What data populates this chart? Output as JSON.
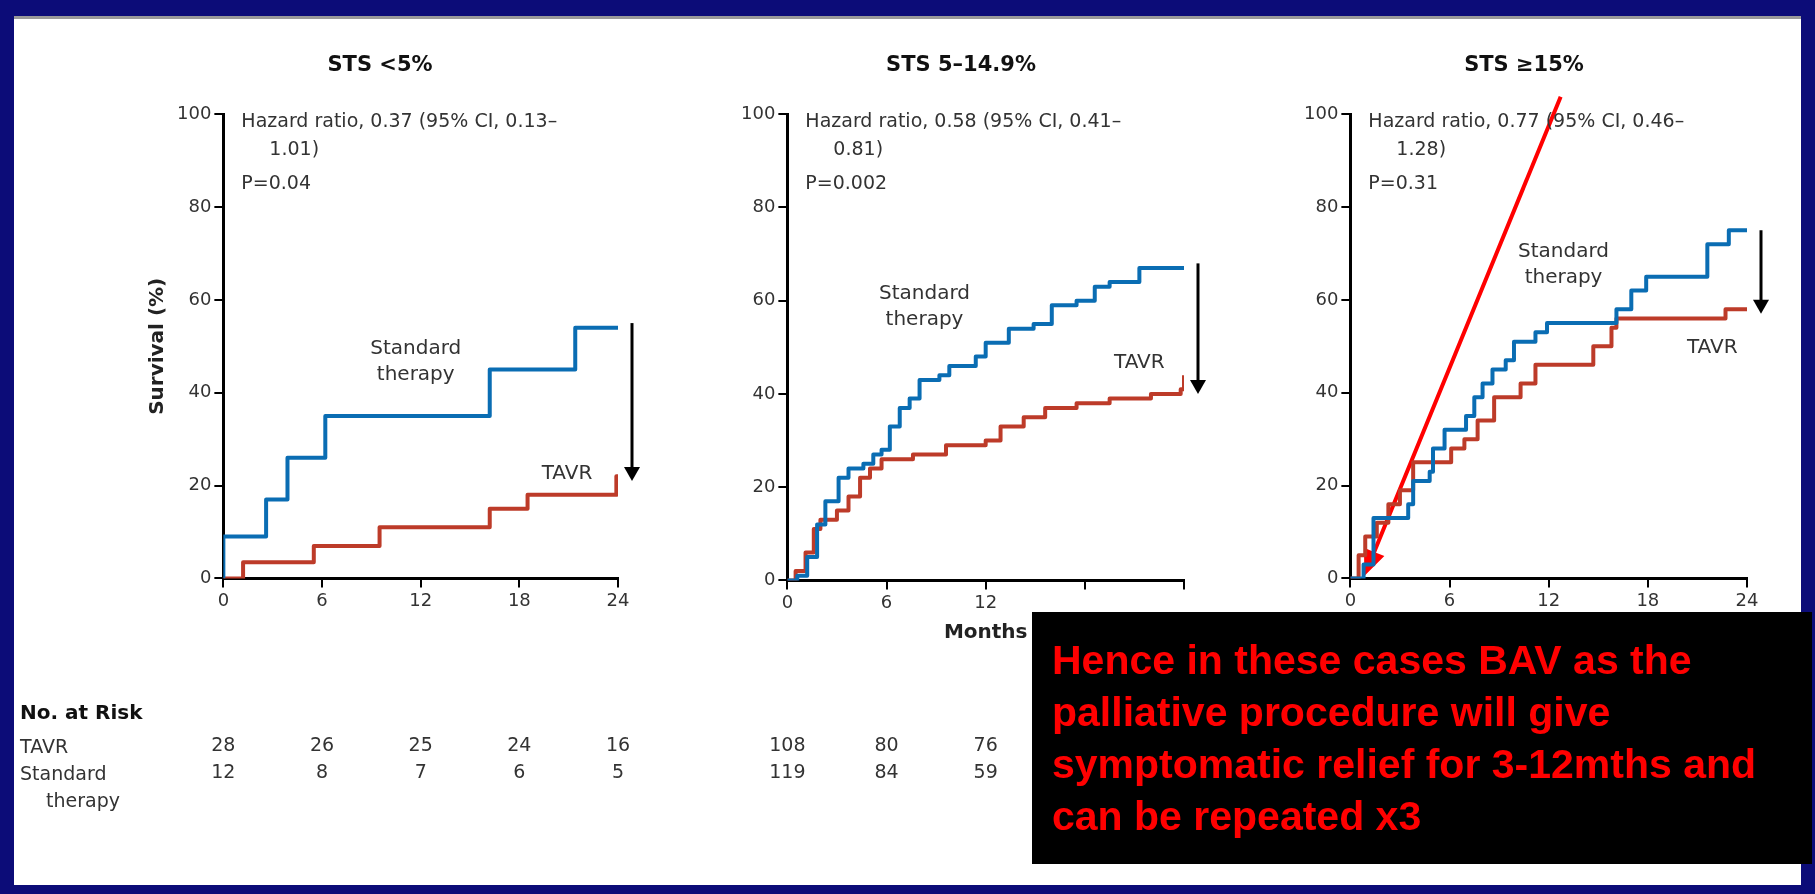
{
  "chart_data": [
    {
      "type": "step",
      "title": "STS <5%",
      "ylabel": "Survival (%)",
      "xlim": [
        0,
        24
      ],
      "xticks": [
        0,
        6,
        12,
        18,
        24
      ],
      "ylim": [
        0,
        100
      ],
      "yticks": [
        0,
        20,
        40,
        60,
        80,
        100
      ],
      "series": [
        {
          "name": "Standard therapy",
          "color": "#0a6db3",
          "x": [
            0,
            0,
            2.6,
            3.9,
            6.2,
            16.2,
            21.4,
            24
          ],
          "values": [
            0,
            9,
            17,
            26,
            35,
            45,
            54,
            54
          ]
        },
        {
          "name": "TAVR",
          "color": "#bd3b29",
          "x": [
            0,
            1.2,
            5.5,
            9.5,
            16.2,
            18.5,
            23.9,
            24
          ],
          "values": [
            0,
            3.5,
            7,
            11,
            15,
            18,
            22,
            22
          ]
        }
      ],
      "annotations": [
        "Hazard ratio, 0.37 (95% CI, 0.13–1.01)",
        "P=0.04",
        "No. at Risk",
        "TAVR",
        "Standard therapy",
        "28 26 25 24 16",
        "12 8 7 6 5"
      ]
    },
    {
      "type": "step",
      "title": "STS 5–14.9%",
      "xlabel": "Months",
      "xlim": [
        0,
        24
      ],
      "xticks": [
        0,
        6,
        12,
        {
          "value": 18,
          "label": null
        },
        {
          "value": 24,
          "label": null
        }
      ],
      "ylim": [
        0,
        100
      ],
      "yticks": [
        0,
        20,
        40,
        60,
        80,
        100
      ],
      "series": [
        {
          "name": "Standard therapy",
          "color": "#0a6db3",
          "x": [
            0,
            0.6,
            1.2,
            1.8,
            2.3,
            3.1,
            3.7,
            4.6,
            5.2,
            5.7,
            6.2,
            6.8,
            7.4,
            8.0,
            9.2,
            9.8,
            11.4,
            12.0,
            13.4,
            14.9,
            16.0,
            17.5,
            18.6,
            19.5,
            21.3,
            24
          ],
          "values": [
            0,
            1,
            5,
            12,
            17,
            22,
            24,
            25,
            27,
            28,
            33,
            37,
            39,
            43,
            44,
            46,
            48,
            51,
            54,
            55,
            59,
            60,
            63,
            64,
            67,
            67
          ]
        },
        {
          "name": "TAVR",
          "color": "#bd3b29",
          "x": [
            0,
            0.5,
            1.1,
            1.6,
            2.0,
            3.0,
            3.7,
            4.4,
            5.0,
            5.7,
            7.6,
            9.6,
            12.0,
            12.9,
            14.3,
            15.6,
            17.5,
            19.5,
            22.0,
            23.8,
            24
          ],
          "values": [
            0,
            2,
            6,
            11,
            13,
            15,
            18,
            22,
            24,
            26,
            27,
            29,
            30,
            33,
            35,
            37,
            38,
            39,
            40,
            41,
            44
          ]
        }
      ],
      "annotations": [
        "Hazard ratio, 0.58 (95% CI, 0.41–0.81)",
        "P=0.002",
        "108 80 76",
        "119 84 59"
      ]
    },
    {
      "type": "step",
      "title": "STS ≥15%",
      "xlim": [
        0,
        24
      ],
      "xticks": [
        0,
        6,
        12,
        18,
        24
      ],
      "ylim": [
        0,
        100
      ],
      "yticks": [
        0,
        20,
        40,
        60,
        80,
        100
      ],
      "series": [
        {
          "name": "Standard therapy",
          "color": "#0a6db3",
          "x": [
            0,
            0.8,
            1.4,
            3.5,
            3.8,
            4.8,
            5.0,
            5.7,
            7.0,
            7.5,
            8.0,
            8.6,
            9.4,
            9.9,
            11.2,
            11.9,
            16.1,
            17.0,
            17.9,
            21.6,
            22.9,
            24
          ],
          "values": [
            0,
            3,
            13,
            16,
            21,
            23,
            28,
            32,
            35,
            39,
            42,
            45,
            47,
            51,
            53,
            55,
            58,
            62,
            65,
            72,
            75,
            75
          ]
        },
        {
          "name": "TAVR",
          "color": "#bd3b29",
          "x": [
            0,
            0.5,
            0.9,
            1.6,
            2.3,
            3.0,
            3.8,
            6.1,
            6.9,
            7.7,
            8.7,
            10.3,
            11.2,
            14.7,
            15.8,
            16.1,
            22.7,
            24
          ],
          "values": [
            0,
            5,
            9,
            12,
            16,
            19,
            25,
            28,
            30,
            34,
            39,
            42,
            46,
            50,
            54,
            56,
            58,
            58
          ]
        }
      ],
      "annotations": [
        "Hazard ratio, 0.77 (95% CI, 0.46–1.28)",
        "P=0.31",
        "Hence in these cases BAV as the palliative procedure will give symptomatic relief for 3-12mths and can be repeated x3"
      ]
    }
  ]
}
